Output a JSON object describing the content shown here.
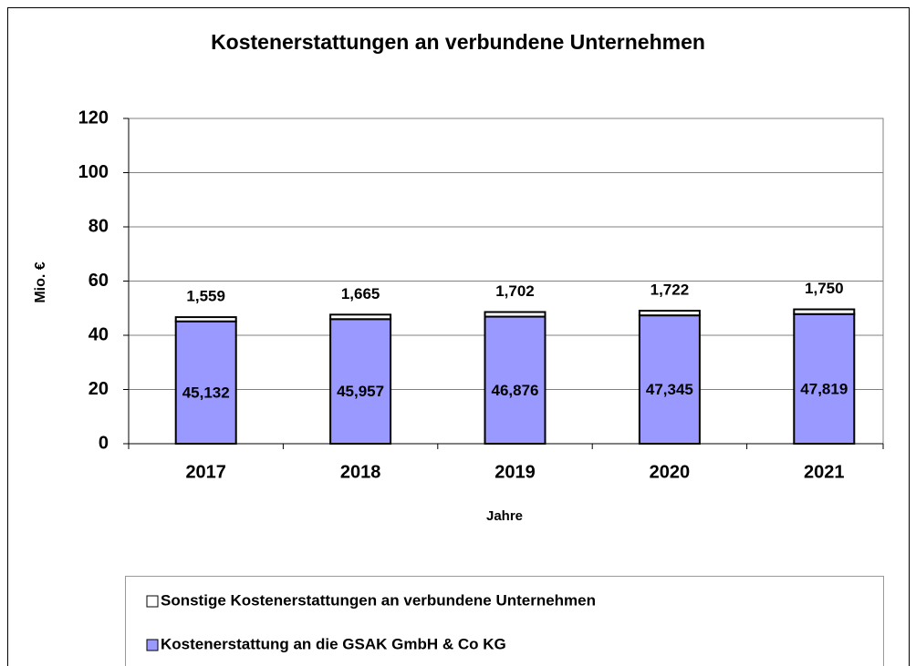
{
  "chart_data": {
    "type": "stacked_bar",
    "title": "Kostenerstattungen an verbundene Unternehmen",
    "x_label": "Jahre",
    "y_label": "Mio. €",
    "categories": [
      "2017",
      "2018",
      "2019",
      "2020",
      "2021"
    ],
    "series": [
      {
        "name": "Kostenerstattung an die GSAK GmbH & Co KG",
        "color": "#9999ff",
        "values": [
          45.132,
          45.957,
          46.876,
          47.345,
          47.819
        ],
        "value_labels": [
          "45,132",
          "45,957",
          "46,876",
          "47,345",
          "47,819"
        ]
      },
      {
        "name": "Sonstige Kostenerstattungen an verbundene Unternehmen",
        "color": "#ffffff",
        "values": [
          1.559,
          1.665,
          1.702,
          1.722,
          1.75
        ],
        "value_labels": [
          "1,559",
          "1,665",
          "1,702",
          "1,722",
          "1,750"
        ]
      }
    ],
    "ylim": [
      0,
      120
    ],
    "yticks": [
      0,
      20,
      40,
      60,
      80,
      100,
      120
    ],
    "grid": true
  }
}
